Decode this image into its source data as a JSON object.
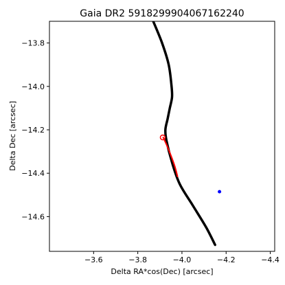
{
  "chart_data": {
    "type": "line",
    "title": "Gaia DR2 5918299904067162240",
    "xlabel": "Delta RA*cos(Dec) [arcsec]",
    "ylabel": "Delta Dec [arcsec]",
    "xlim": [
      -3.4,
      -4.42
    ],
    "ylim": [
      -14.76,
      -13.7
    ],
    "x_inverted": true,
    "grid": false,
    "xticks": [
      {
        "value": -3.6,
        "label": "−3.6"
      },
      {
        "value": -3.8,
        "label": "−3.8"
      },
      {
        "value": -4.0,
        "label": "−4.0"
      },
      {
        "value": -4.2,
        "label": "−4.2"
      },
      {
        "value": -4.4,
        "label": "−4.4"
      }
    ],
    "yticks": [
      {
        "value": -13.8,
        "label": "−13.8"
      },
      {
        "value": -14.0,
        "label": "−14.0"
      },
      {
        "value": -14.2,
        "label": "−14.2"
      },
      {
        "value": -14.4,
        "label": "−14.4"
      },
      {
        "value": -14.6,
        "label": "−14.6"
      }
    ],
    "series": [
      {
        "color": "#000000",
        "style": "thick-line",
        "x": [
          -3.87,
          -3.91,
          -3.94,
          -3.953,
          -3.955,
          -3.945,
          -3.935,
          -3.925,
          -3.93,
          -3.955,
          -3.99,
          -4.05,
          -4.11,
          -4.15
        ],
        "y": [
          -13.7,
          -13.8,
          -13.9,
          -14.0,
          -14.05,
          -14.1,
          -14.15,
          -14.2,
          -14.25,
          -14.35,
          -14.45,
          -14.55,
          -14.65,
          -14.73
        ]
      },
      {
        "color": "#ff0000",
        "style": "line",
        "x": [
          -3.915,
          -3.935,
          -3.965,
          -3.98
        ],
        "y": [
          -14.235,
          -14.28,
          -14.36,
          -14.415
        ]
      },
      {
        "color": "#ff0000",
        "style": "circle-marker",
        "x": [
          -3.913
        ],
        "y": [
          -14.235
        ]
      },
      {
        "color": "#0000ff",
        "style": "dot",
        "x": [
          -4.17
        ],
        "y": [
          -14.485
        ]
      }
    ]
  }
}
